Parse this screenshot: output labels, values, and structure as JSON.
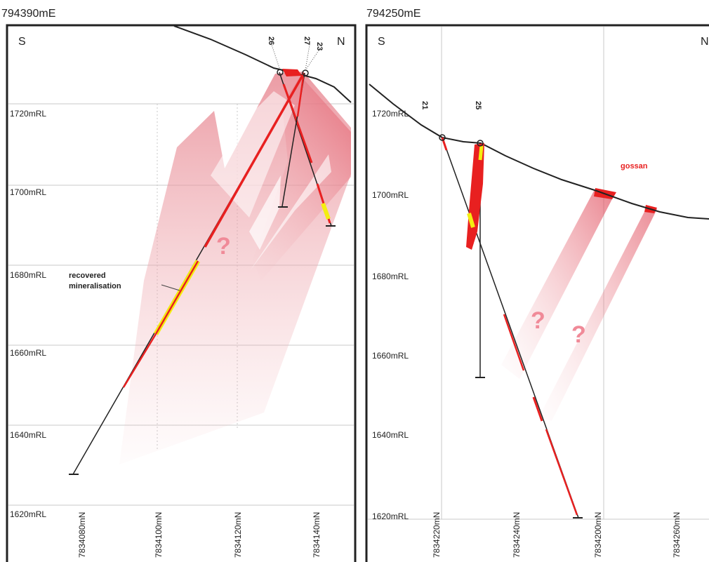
{
  "left_section": {
    "easting": "794390mE",
    "south": "S",
    "north": "N",
    "rl_labels": [
      "1720mRL",
      "1700mRL",
      "1680mRL",
      "1660mRL",
      "1640mRL",
      "1620mRL"
    ],
    "northing_labels": [
      "7834080mN",
      "7834100mN",
      "7834120mN",
      "7834140mN"
    ],
    "holes": [
      "26",
      "27",
      "23"
    ],
    "annotation": [
      "recovered",
      "mineralisation"
    ],
    "question_mark": "?"
  },
  "right_section": {
    "easting": "794250mE",
    "south": "S",
    "north": "N",
    "rl_labels": [
      "1720mRL",
      "1700mRL",
      "1680mRL",
      "1660mRL",
      "1640mRL",
      "1620mRL"
    ],
    "northing_labels": [
      "7834220mN",
      "7834240mN",
      "7834200mN",
      "7834260mN"
    ],
    "holes": [
      "21",
      "25"
    ],
    "gossan_label": "gossan",
    "question_marks": [
      "?",
      "?"
    ]
  },
  "colors": {
    "mineralisation": "#e82020",
    "recovered": "#f4ee10",
    "zone": "#f0a0a8",
    "drillhole": "#222222"
  }
}
